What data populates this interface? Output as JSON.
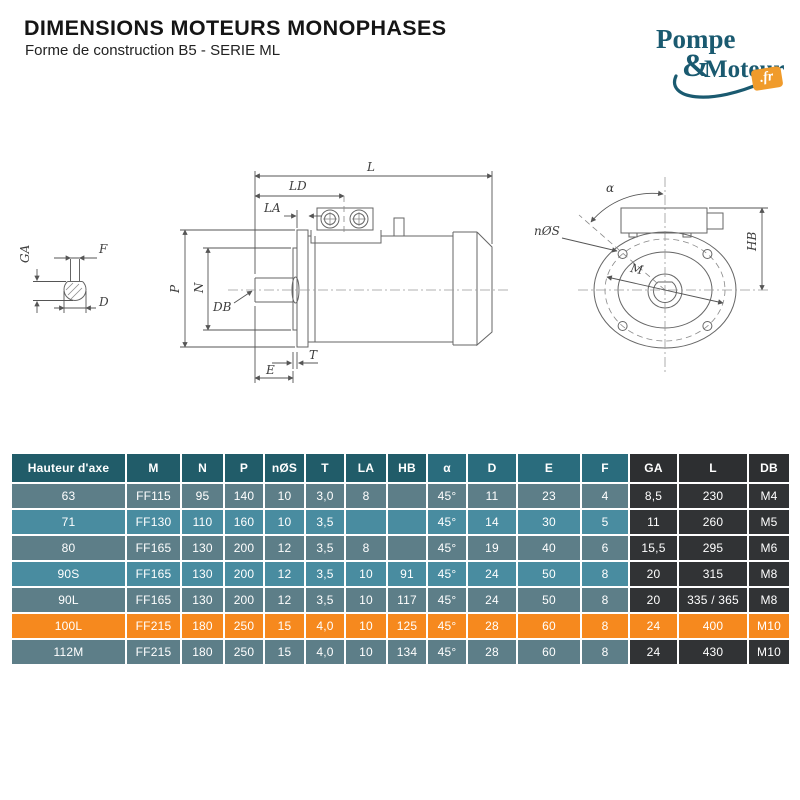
{
  "header": {
    "title": "DIMENSIONS MOTEURS MONOPHASES",
    "subtitle": "Forme de construction B5 - SERIE ML"
  },
  "logo": {
    "word1": "Pompe",
    "ampersand": "&",
    "word2": "Moteur",
    "domain": ".fr"
  },
  "diagram": {
    "shaft_view": {
      "f": "F",
      "ga": "GA",
      "d": "D"
    },
    "side_view": {
      "l": "L",
      "ld": "LD",
      "la": "LA",
      "p": "P",
      "n": "N",
      "db": "DB",
      "t": "T",
      "e": "E"
    },
    "front_view": {
      "alpha": "α",
      "n_holes": "nØS",
      "m": "M",
      "hb": "HB"
    }
  },
  "table": {
    "columns": [
      "Hauteur d'axe",
      "M",
      "N",
      "P",
      "nØS",
      "T",
      "LA",
      "HB",
      "α",
      "D",
      "E",
      "F",
      "GA",
      "L",
      "DB"
    ],
    "rows": [
      [
        "63",
        "FF115",
        "95",
        "140",
        "10",
        "3,0",
        "8",
        "",
        "45°",
        "11",
        "23",
        "4",
        "8,5",
        "230",
        "M4"
      ],
      [
        "71",
        "FF130",
        "110",
        "160",
        "10",
        "3,5",
        "",
        "",
        "45°",
        "14",
        "30",
        "5",
        "11",
        "260",
        "M5"
      ],
      [
        "80",
        "FF165",
        "130",
        "200",
        "12",
        "3,5",
        "8",
        "",
        "45°",
        "19",
        "40",
        "6",
        "15,5",
        "295",
        "M6"
      ],
      [
        "90S",
        "FF165",
        "130",
        "200",
        "12",
        "3,5",
        "10",
        "91",
        "45°",
        "24",
        "50",
        "8",
        "20",
        "315",
        "M8"
      ],
      [
        "90L",
        "FF165",
        "130",
        "200",
        "12",
        "3,5",
        "10",
        "117",
        "45°",
        "24",
        "50",
        "8",
        "20",
        "335 / 365",
        "M8"
      ],
      [
        "100L",
        "FF215",
        "180",
        "250",
        "15",
        "4,0",
        "10",
        "125",
        "45°",
        "28",
        "60",
        "8",
        "24",
        "400",
        "M10"
      ],
      [
        "112M",
        "FF215",
        "180",
        "250",
        "15",
        "4,0",
        "10",
        "134",
        "45°",
        "28",
        "60",
        "8",
        "24",
        "430",
        "M10"
      ]
    ],
    "highlight_row_index": 5
  },
  "colors": {
    "header_teal": "#215C69",
    "header_teal_light": "#2A6C7D",
    "header_charcoal": "#2D2F31",
    "row_slate": "#5D7E88",
    "row_teal": "#498CA0",
    "row_charcoal": "#313335",
    "highlight_orange": "#F6891E",
    "logo_teal": "#1A5A70",
    "logo_orange": "#F09B2B"
  }
}
